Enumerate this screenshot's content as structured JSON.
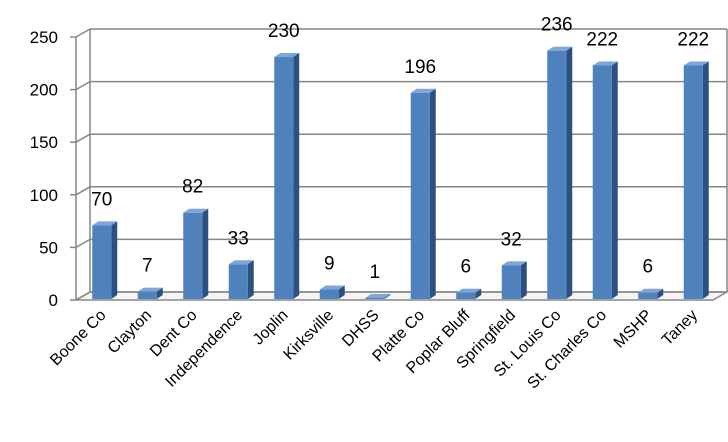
{
  "chart_data": {
    "type": "bar",
    "style": "3d-clustered-column",
    "categories": [
      "Boone Co",
      "Clayton",
      "Dent Co",
      "Independence",
      "Joplin",
      "Kirksville",
      "DHSS",
      "Platte Co",
      "Poplar Bluff",
      "Springfield",
      "St. Louis Co",
      "St. Charles Co",
      "MSHP",
      "Taney"
    ],
    "values": [
      70,
      7,
      82,
      33,
      230,
      9,
      1,
      196,
      6,
      32,
      236,
      222,
      6,
      222
    ],
    "data_labels": [
      "70",
      "7",
      "82",
      "33",
      "230",
      "9",
      "1",
      "196",
      "6",
      "32",
      "236",
      "222",
      "6",
      "222"
    ],
    "yticks": [
      "0",
      "50",
      "100",
      "150",
      "200",
      "250"
    ],
    "ylim": [
      0,
      250
    ],
    "grid": true,
    "legend": "none",
    "colors": {
      "bar_front": "#4F81BD",
      "bar_side": "#2C5181",
      "bar_top": "#7FA6D8",
      "grid": "#868686",
      "wall": "#FFFFFF"
    }
  }
}
